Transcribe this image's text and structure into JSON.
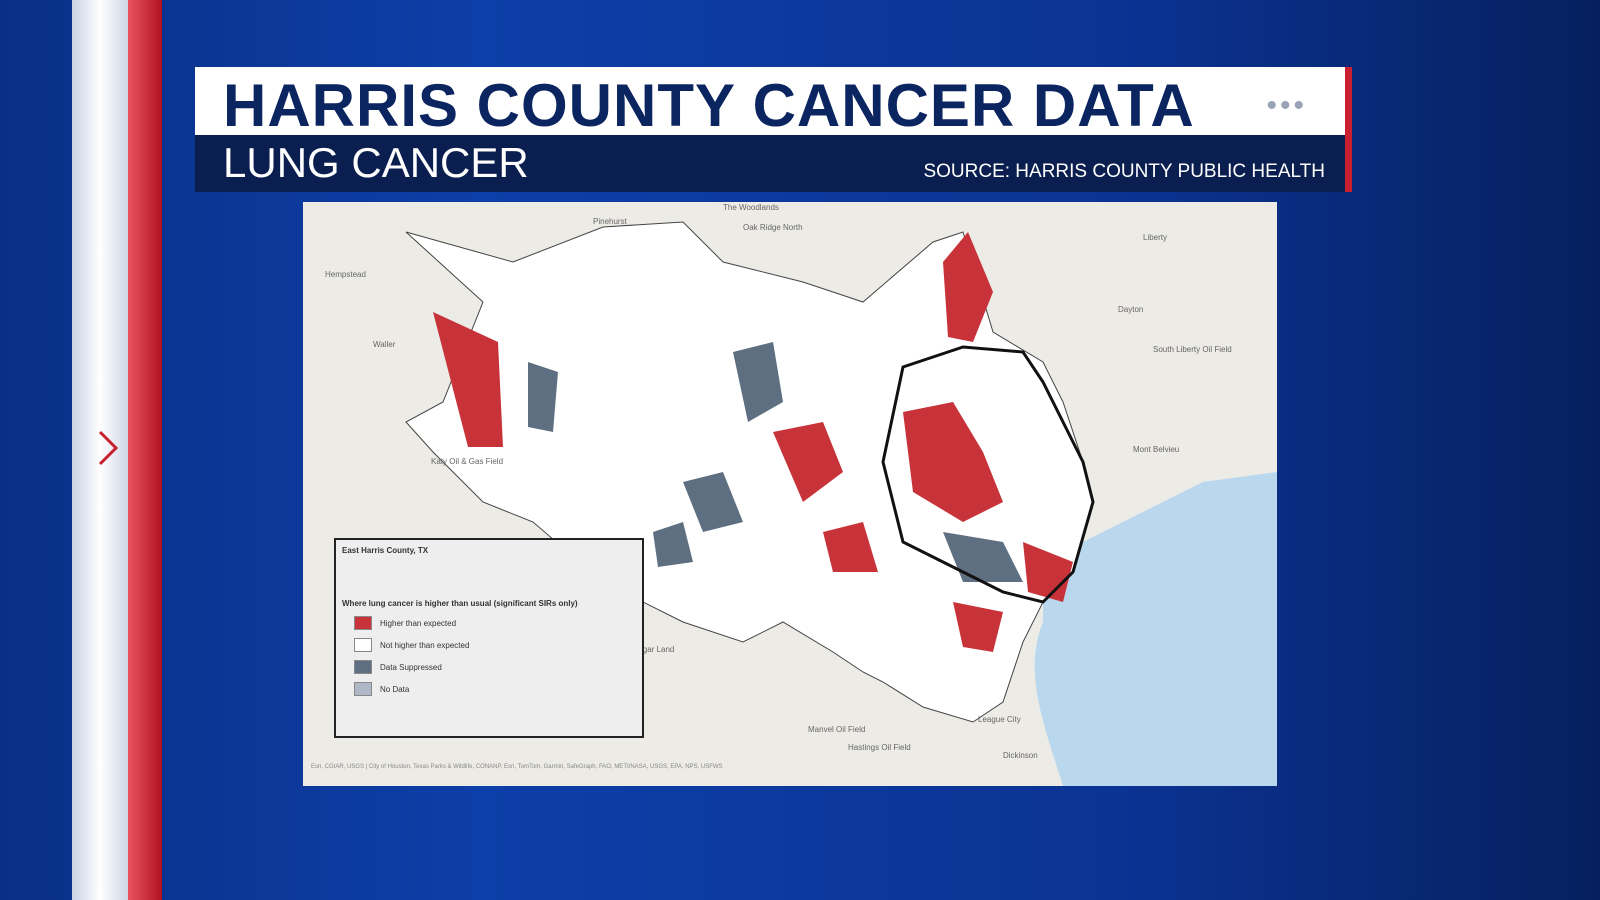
{
  "header": {
    "title": "HARRIS COUNTY CANCER DATA",
    "subtitle": "LUNG CANCER",
    "source": "SOURCE: HARRIS COUNTY PUBLIC HEALTH"
  },
  "map": {
    "labels": [
      "The Woodlands",
      "Oak Ridge North",
      "Pinehurst",
      "Hempstead",
      "Waller",
      "Katy Oil & Gas Field",
      "Sugar Land",
      "Liberty",
      "Dayton",
      "South Liberty Oil Field",
      "Mont Belvieu",
      "League City",
      "Manvel Oil Field",
      "Hastings Oil Field",
      "Dickinson"
    ],
    "attribution": "Esri, CGIAR, USGS | City of Houston, Texas Parks & Wildlife, CONANP, Esri, TomTom, Garmin, SafeGraph, FAO, METI/NASA, USGS, EPA, NPS, USFWS"
  },
  "legend": {
    "title": "East Harris County, TX",
    "heading": "Where lung cancer is higher than usual (significant SIRs only)",
    "items": [
      "Higher than expected",
      "Not higher than expected",
      "Data Suppressed",
      "No Data"
    ]
  }
}
